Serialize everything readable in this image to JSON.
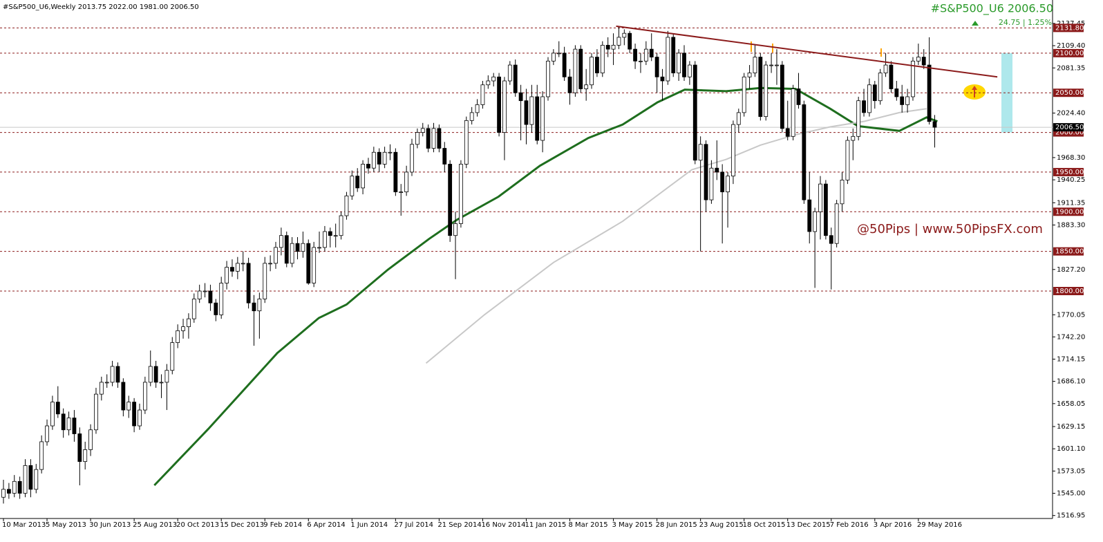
{
  "header": {
    "info": "#S&P500_U6,Weekly  2013.75 2022.00 1981.00 2006.50",
    "symbol_price": "#S&P500_U6  2006.50",
    "change": "24.75 | 1.25%",
    "watermark": "@50Pips | www.50PipsFX.com"
  },
  "chart_data": {
    "type": "candlestick",
    "categories": [
      "10 Mar 2013",
      null,
      null,
      null,
      null,
      null,
      null,
      null,
      "5 May 2013",
      null,
      null,
      null,
      null,
      null,
      null,
      null,
      "30 Jun 2013",
      null,
      null,
      null,
      null,
      null,
      null,
      null,
      "25 Aug 2013",
      null,
      null,
      null,
      null,
      null,
      null,
      null,
      "20 Oct 2013",
      null,
      null,
      null,
      null,
      null,
      null,
      null,
      "15 Dec 2013",
      null,
      null,
      null,
      null,
      null,
      null,
      null,
      "9 Feb 2014",
      null,
      null,
      null,
      null,
      null,
      null,
      null,
      "6 Apr 2014",
      null,
      null,
      null,
      null,
      null,
      null,
      null,
      "1 Jun 2014",
      null,
      null,
      null,
      null,
      null,
      null,
      null,
      "27 Jul 2014",
      null,
      null,
      null,
      null,
      null,
      null,
      null,
      "21 Sep 2014",
      null,
      null,
      null,
      null,
      null,
      null,
      null,
      "16 Nov 2014",
      null,
      null,
      null,
      null,
      null,
      null,
      null,
      "11 Jan 2015",
      null,
      null,
      null,
      null,
      null,
      null,
      null,
      "8 Mar 2015",
      null,
      null,
      null,
      null,
      null,
      null,
      null,
      "3 May 2015",
      null,
      null,
      null,
      null,
      null,
      null,
      null,
      "28 Jun 2015",
      null,
      null,
      null,
      null,
      null,
      null,
      null,
      "23 Aug 2015",
      null,
      null,
      null,
      null,
      null,
      null,
      null,
      "18 Oct 2015",
      null,
      null,
      null,
      null,
      null,
      null,
      null,
      "13 Dec 2015",
      null,
      null,
      null,
      null,
      null,
      null,
      null,
      "7 Feb 2016",
      null,
      null,
      null,
      null,
      null,
      null,
      null,
      "3 Apr 2016",
      null,
      null,
      null,
      null,
      null,
      null,
      null,
      "29 May 2016",
      null,
      null,
      null
    ],
    "ohlc": [
      [
        1540,
        1562,
        1532,
        1550
      ],
      [
        1550,
        1558,
        1538,
        1545
      ],
      [
        1545,
        1568,
        1540,
        1560
      ],
      [
        1560,
        1566,
        1538,
        1545
      ],
      [
        1545,
        1588,
        1540,
        1580
      ],
      [
        1580,
        1588,
        1540,
        1550
      ],
      [
        1550,
        1582,
        1545,
        1575
      ],
      [
        1575,
        1618,
        1570,
        1610
      ],
      [
        1610,
        1638,
        1605,
        1630
      ],
      [
        1630,
        1668,
        1625,
        1660
      ],
      [
        1660,
        1680,
        1640,
        1645
      ],
      [
        1645,
        1652,
        1615,
        1625
      ],
      [
        1625,
        1648,
        1618,
        1640
      ],
      [
        1640,
        1650,
        1610,
        1620
      ],
      [
        1620,
        1628,
        1555,
        1585
      ],
      [
        1585,
        1610,
        1575,
        1600
      ],
      [
        1600,
        1632,
        1592,
        1625
      ],
      [
        1625,
        1678,
        1620,
        1670
      ],
      [
        1670,
        1692,
        1662,
        1685
      ],
      [
        1685,
        1695,
        1678,
        1685
      ],
      [
        1685,
        1712,
        1680,
        1705
      ],
      [
        1705,
        1710,
        1678,
        1685
      ],
      [
        1685,
        1690,
        1642,
        1650
      ],
      [
        1650,
        1668,
        1640,
        1660
      ],
      [
        1660,
        1665,
        1622,
        1630
      ],
      [
        1630,
        1658,
        1625,
        1650
      ],
      [
        1650,
        1692,
        1645,
        1685
      ],
      [
        1685,
        1725,
        1680,
        1705
      ],
      [
        1705,
        1712,
        1678,
        1685
      ],
      [
        1685,
        1695,
        1665,
        1685
      ],
      [
        1685,
        1708,
        1650,
        1700
      ],
      [
        1700,
        1742,
        1695,
        1735
      ],
      [
        1735,
        1758,
        1728,
        1750
      ],
      [
        1750,
        1765,
        1740,
        1755
      ],
      [
        1755,
        1772,
        1740,
        1765
      ],
      [
        1765,
        1797,
        1760,
        1790
      ],
      [
        1790,
        1808,
        1785,
        1800
      ],
      [
        1800,
        1810,
        1792,
        1800
      ],
      [
        1800,
        1808,
        1775,
        1785
      ],
      [
        1785,
        1790,
        1762,
        1770
      ],
      [
        1770,
        1818,
        1765,
        1810
      ],
      [
        1810,
        1838,
        1802,
        1830
      ],
      [
        1830,
        1840,
        1818,
        1825
      ],
      [
        1825,
        1843,
        1815,
        1835
      ],
      [
        1835,
        1850,
        1825,
        1835
      ],
      [
        1835,
        1842,
        1778,
        1785
      ],
      [
        1785,
        1795,
        1731,
        1775
      ],
      [
        1775,
        1798,
        1740,
        1790
      ],
      [
        1790,
        1843,
        1785,
        1835
      ],
      [
        1835,
        1845,
        1825,
        1835
      ],
      [
        1835,
        1862,
        1828,
        1855
      ],
      [
        1855,
        1880,
        1845,
        1870
      ],
      [
        1870,
        1875,
        1830,
        1835
      ],
      [
        1835,
        1868,
        1830,
        1860
      ],
      [
        1860,
        1868,
        1840,
        1850
      ],
      [
        1850,
        1875,
        1842,
        1860
      ],
      [
        1860,
        1865,
        1808,
        1810
      ],
      [
        1810,
        1862,
        1805,
        1855
      ],
      [
        1855,
        1875,
        1848,
        1855
      ],
      [
        1855,
        1882,
        1850,
        1875
      ],
      [
        1875,
        1880,
        1855,
        1870
      ],
      [
        1870,
        1885,
        1855,
        1870
      ],
      [
        1870,
        1900,
        1865,
        1895
      ],
      [
        1895,
        1925,
        1890,
        1920
      ],
      [
        1920,
        1952,
        1915,
        1945
      ],
      [
        1945,
        1955,
        1925,
        1930
      ],
      [
        1930,
        1965,
        1922,
        1960
      ],
      [
        1960,
        1968,
        1948,
        1955
      ],
      [
        1955,
        1982,
        1950,
        1975
      ],
      [
        1975,
        1980,
        1950,
        1960
      ],
      [
        1960,
        1982,
        1955,
        1975
      ],
      [
        1975,
        1985,
        1965,
        1975
      ],
      [
        1975,
        1980,
        1920,
        1925
      ],
      [
        1925,
        1935,
        1895,
        1925
      ],
      [
        1925,
        1958,
        1920,
        1950
      ],
      [
        1950,
        1992,
        1945,
        1985
      ],
      [
        1985,
        2005,
        1980,
        2000
      ],
      [
        2000,
        2012,
        1995,
        2005
      ],
      [
        2005,
        2010,
        1975,
        1980
      ],
      [
        1980,
        2012,
        1975,
        2005
      ],
      [
        2005,
        2010,
        1975,
        1980
      ],
      [
        1980,
        1988,
        1950,
        1960
      ],
      [
        1960,
        1965,
        1862,
        1870
      ],
      [
        1870,
        1900,
        1815,
        1885
      ],
      [
        1885,
        1965,
        1880,
        1960
      ],
      [
        1960,
        2020,
        1955,
        2015
      ],
      [
        2015,
        2032,
        2010,
        2025
      ],
      [
        2025,
        2042,
        2020,
        2035
      ],
      [
        2035,
        2065,
        2030,
        2060
      ],
      [
        2060,
        2072,
        2055,
        2065
      ],
      [
        2065,
        2075,
        2058,
        2070
      ],
      [
        2070,
        2075,
        1995,
        2000
      ],
      [
        2000,
        2070,
        1965,
        2065
      ],
      [
        2065,
        2090,
        2060,
        2085
      ],
      [
        2085,
        2092,
        2045,
        2050
      ],
      [
        2050,
        2060,
        1990,
        2040
      ],
      [
        2040,
        2055,
        1985,
        2010
      ],
      [
        2010,
        2060,
        2000,
        2045
      ],
      [
        2045,
        2060,
        1985,
        1990
      ],
      [
        1990,
        2052,
        1975,
        2045
      ],
      [
        2045,
        2095,
        2040,
        2090
      ],
      [
        2090,
        2105,
        2085,
        2100
      ],
      [
        2100,
        2115,
        2095,
        2100
      ],
      [
        2100,
        2108,
        2065,
        2070
      ],
      [
        2070,
        2080,
        2035,
        2050
      ],
      [
        2050,
        2110,
        2045,
        2105
      ],
      [
        2105,
        2110,
        2050,
        2055
      ],
      [
        2055,
        2080,
        2040,
        2060
      ],
      [
        2060,
        2100,
        2055,
        2095
      ],
      [
        2095,
        2105,
        2070,
        2075
      ],
      [
        2075,
        2115,
        2070,
        2110
      ],
      [
        2110,
        2120,
        2095,
        2105
      ],
      [
        2105,
        2125,
        2085,
        2110
      ],
      [
        2110,
        2134,
        2105,
        2120
      ],
      [
        2120,
        2130,
        2110,
        2125
      ],
      [
        2125,
        2128,
        2100,
        2105
      ],
      [
        2105,
        2112,
        2080,
        2090
      ],
      [
        2090,
        2100,
        2075,
        2090
      ],
      [
        2090,
        2115,
        2085,
        2105
      ],
      [
        2105,
        2125,
        2090,
        2095
      ],
      [
        2095,
        2100,
        2050,
        2070
      ],
      [
        2070,
        2080,
        2040,
        2065
      ],
      [
        2065,
        2128,
        2060,
        2120
      ],
      [
        2120,
        2125,
        2070,
        2075
      ],
      [
        2075,
        2105,
        2065,
        2100
      ],
      [
        2100,
        2110,
        2065,
        2070
      ],
      [
        2070,
        2090,
        2060,
        2085
      ],
      [
        2085,
        2090,
        1960,
        1965
      ],
      [
        1965,
        1995,
        1850,
        1985
      ],
      [
        1985,
        1990,
        1900,
        1915
      ],
      [
        1915,
        1965,
        1910,
        1955
      ],
      [
        1955,
        1990,
        1940,
        1950
      ],
      [
        1950,
        1960,
        1860,
        1925
      ],
      [
        1925,
        1950,
        1880,
        1945
      ],
      [
        1945,
        2015,
        1935,
        2010
      ],
      [
        2010,
        2030,
        2000,
        2025
      ],
      [
        2025,
        2075,
        2020,
        2070
      ],
      [
        2070,
        2085,
        2055,
        2075
      ],
      [
        2075,
        2110,
        2070,
        2095
      ],
      [
        2095,
        2100,
        2015,
        2020
      ],
      [
        2020,
        2090,
        2015,
        2085
      ],
      [
        2085,
        2100,
        2075,
        2085
      ],
      [
        2085,
        2105,
        2060,
        2085
      ],
      [
        2085,
        2090,
        2000,
        2005
      ],
      [
        2005,
        2040,
        1990,
        1995
      ],
      [
        1995,
        2060,
        1990,
        2055
      ],
      [
        2055,
        2075,
        2030,
        2035
      ],
      [
        2035,
        2040,
        1910,
        1915
      ],
      [
        1915,
        1950,
        1860,
        1875
      ],
      [
        1875,
        1905,
        1804,
        1900
      ],
      [
        1900,
        1945,
        1865,
        1935
      ],
      [
        1935,
        1940,
        1865,
        1870
      ],
      [
        1870,
        1880,
        1802,
        1860
      ],
      [
        1860,
        1915,
        1855,
        1910
      ],
      [
        1910,
        1950,
        1900,
        1940
      ],
      [
        1940,
        1995,
        1935,
        1990
      ],
      [
        1990,
        2005,
        1965,
        1995
      ],
      [
        1995,
        2045,
        1990,
        2040
      ],
      [
        2040,
        2055,
        2020,
        2025
      ],
      [
        2025,
        2068,
        2020,
        2060
      ],
      [
        2060,
        2065,
        2030,
        2040
      ],
      [
        2040,
        2080,
        2035,
        2075
      ],
      [
        2075,
        2100,
        2070,
        2085
      ],
      [
        2085,
        2090,
        2050,
        2055
      ],
      [
        2055,
        2065,
        2040,
        2045
      ],
      [
        2045,
        2060,
        2025,
        2035
      ],
      [
        2035,
        2055,
        2025,
        2045
      ],
      [
        2045,
        2095,
        2040,
        2090
      ],
      [
        2090,
        2112,
        2085,
        2095
      ],
      [
        2095,
        2105,
        2080,
        2085
      ],
      [
        2085,
        2120,
        2010,
        2013.75
      ],
      [
        2013.75,
        2022,
        1981,
        2006.5
      ]
    ],
    "up_color": "#ffffff",
    "down_color": "#000000",
    "ylim": [
      1513.2,
      2167
    ],
    "yticks": [
      2137.45,
      {
        "value": 2109.4,
        "label": "2109.40"
      },
      2081.35,
      {
        "value": 2024.4,
        "label": "2024.40"
      },
      {
        "value": 1968.3,
        "label": "1968.30"
      },
      1940.25,
      1911.35,
      {
        "value": 1883.3,
        "label": "1883.30"
      },
      {
        "value": 1827.2,
        "label": "1827.20"
      },
      1770.05,
      {
        "value": 1742.2,
        "label": "1742.20"
      },
      1714.15,
      {
        "value": 1686.1,
        "label": "1686.10"
      },
      1658.05,
      1629.15,
      {
        "value": 1601.1,
        "label": "1601.10"
      },
      1573.05,
      {
        "value": 1545,
        "label": "1545.00"
      },
      1516.95
    ],
    "levels": [
      {
        "value": 2131.8,
        "label": "2131.80"
      },
      {
        "value": 2100,
        "label": "2100.00"
      },
      {
        "value": 2050,
        "label": "2050.00"
      },
      {
        "value": 2000,
        "label": "2000.00"
      },
      {
        "value": 1950,
        "label": "1950.00"
      },
      {
        "value": 1900,
        "label": "1900.00"
      },
      {
        "value": 1850,
        "label": "1850.00"
      },
      {
        "value": 1800,
        "label": "1800.00"
      }
    ],
    "level_color": "#8b1a1a",
    "last_price": {
      "value": 2006.5,
      "label": "2006.50"
    },
    "overlays": [
      {
        "color": "#1e6e1e",
        "x": [
          27.7,
          37.6,
          50.3,
          57.9,
          63,
          70.6,
          78.2,
          83.3,
          90.9,
          98.5,
          107.4,
          113.7,
          120.1,
          125.1,
          132.7,
          139,
          145.4,
          151.8,
          156.9,
          164.5,
          169.5,
          171.5
        ],
        "values": [
          1555,
          1626,
          1722,
          1766,
          1783,
          1827,
          1866,
          1890,
          1919,
          1958,
          1993,
          2010,
          2038,
          2054,
          2052,
          2056,
          2055,
          2030,
          2008,
          2002,
          2019,
          2014
        ]
      },
      {
        "color": "#c8c8c8",
        "x": [
          77.6,
          88.3,
          101,
          113.7,
          126.4,
          132.7,
          139,
          145.4,
          151.8,
          158.1,
          164.5,
          169.5
        ],
        "values": [
          1709,
          1770,
          1836,
          1888,
          1953,
          1966,
          1984,
          1997,
          2007,
          2014,
          2025,
          2030
        ]
      }
    ],
    "trendline": {
      "color": "#8b1a1a",
      "x": [
        112.5,
        182.5
      ],
      "values": [
        2134,
        2070
      ]
    },
    "zone": {
      "color": "#aee8ec",
      "values": [
        2000,
        2100
      ]
    }
  }
}
